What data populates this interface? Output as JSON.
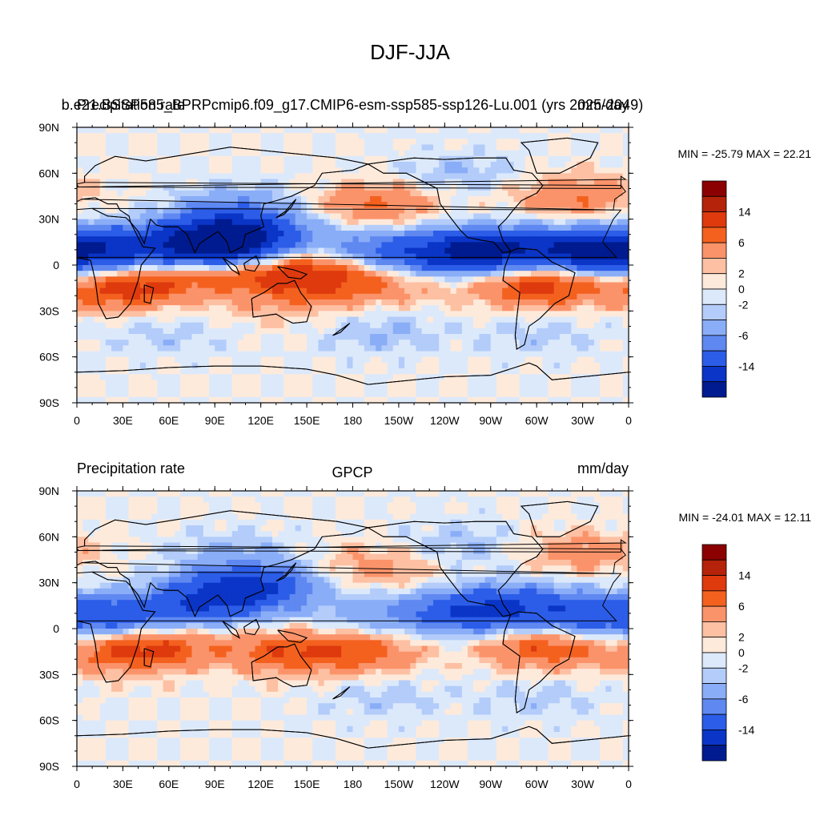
{
  "figure": {
    "title": "DJF-JJA"
  },
  "chart_data": [
    {
      "type": "heatmap",
      "panel": "top",
      "left_title": "Precipitation rate",
      "center_title": "b.e21.BSSP585_BPRPcmip6.f09_g17.CMIP6-esm-ssp585-ssp126-Lu.001 (yrs 2025-2049)",
      "right_title": "mm/day",
      "stats_label": "MIN = -25.79 MAX =  22.21",
      "min": -25.79,
      "max": 22.21,
      "x_ticks": [
        "0",
        "30E",
        "60E",
        "90E",
        "120E",
        "150E",
        "180",
        "150W",
        "120W",
        "90W",
        "60W",
        "30W",
        "0"
      ],
      "y_ticks": [
        "90N",
        "60N",
        "30N",
        "0",
        "30S",
        "60S",
        "90S"
      ],
      "colorbar": {
        "labels": [
          "14",
          "6",
          "2",
          "0",
          "-2",
          "-6",
          "-14"
        ],
        "colors": [
          "#8b0000",
          "#b5230b",
          "#de3a0e",
          "#f4611f",
          "#fb936a",
          "#fdc0a3",
          "#feeadb",
          "#dce9fb",
          "#b3ccfa",
          "#8aadf7",
          "#5f88f1",
          "#2c5de8",
          "#0a35c7",
          "#001b8f"
        ]
      },
      "features": [
        {
          "lon": 95,
          "lat": 22,
          "v": -8
        },
        {
          "lon": 90,
          "lat": 10,
          "v": -10
        },
        {
          "lon": 80,
          "lat": 12,
          "v": -6
        },
        {
          "lon": 120,
          "lat": 20,
          "v": -5
        },
        {
          "lon": 105,
          "lat": 38,
          "v": -3
        },
        {
          "lon": 30,
          "lat": 10,
          "v": -6
        },
        {
          "lon": 0,
          "lat": 10,
          "v": -8
        },
        {
          "lon": 200,
          "lat": 8,
          "v": -6
        },
        {
          "lon": 250,
          "lat": 8,
          "v": -10
        },
        {
          "lon": 280,
          "lat": 10,
          "v": -8
        },
        {
          "lon": 330,
          "lat": 8,
          "v": -10
        },
        {
          "lon": 250,
          "lat": 60,
          "v": -2
        },
        {
          "lon": 200,
          "lat": -45,
          "v": -2
        },
        {
          "lon": 60,
          "lat": -45,
          "v": -1.5
        },
        {
          "lon": 300,
          "lat": -45,
          "v": -1.5
        },
        {
          "lon": 30,
          "lat": -15,
          "v": 7
        },
        {
          "lon": 80,
          "lat": -3,
          "v": 6
        },
        {
          "lon": 140,
          "lat": -5,
          "v": 7
        },
        {
          "lon": 185,
          "lat": -10,
          "v": 5
        },
        {
          "lon": 305,
          "lat": -12,
          "v": 8
        },
        {
          "lon": 325,
          "lat": 45,
          "v": 4
        },
        {
          "lon": 195,
          "lat": 40,
          "v": 4
        },
        {
          "lon": 130,
          "lat": -25,
          "v": 2
        },
        {
          "lon": 250,
          "lat": -15,
          "v": 1
        }
      ]
    },
    {
      "type": "heatmap",
      "panel": "bottom",
      "left_title": "Precipitation rate",
      "center_title": "GPCP",
      "right_title": "mm/day",
      "stats_label": "MIN = -24.01 MAX =  12.11",
      "min": -24.01,
      "max": 12.11,
      "x_ticks": [
        "0",
        "30E",
        "60E",
        "90E",
        "120E",
        "150E",
        "180",
        "150W",
        "120W",
        "90W",
        "60W",
        "30W",
        "0"
      ],
      "y_ticks": [
        "90N",
        "60N",
        "30N",
        "0",
        "30S",
        "60S",
        "90S"
      ],
      "colorbar": {
        "labels": [
          "14",
          "6",
          "2",
          "0",
          "-2",
          "-6",
          "-14"
        ],
        "colors": [
          "#8b0000",
          "#b5230b",
          "#de3a0e",
          "#f4611f",
          "#fb936a",
          "#fdc0a3",
          "#feeadb",
          "#dce9fb",
          "#b3ccfa",
          "#8aadf7",
          "#5f88f1",
          "#2c5de8",
          "#0a35c7",
          "#001b8f"
        ]
      },
      "features": [
        {
          "lon": 100,
          "lat": 25,
          "v": -7
        },
        {
          "lon": 85,
          "lat": 15,
          "v": -6
        },
        {
          "lon": 125,
          "lat": 30,
          "v": -5
        },
        {
          "lon": 10,
          "lat": 8,
          "v": -5
        },
        {
          "lon": 40,
          "lat": 8,
          "v": -4
        },
        {
          "lon": 190,
          "lat": 8,
          "v": -3
        },
        {
          "lon": 250,
          "lat": 10,
          "v": -7
        },
        {
          "lon": 285,
          "lat": 15,
          "v": -7
        },
        {
          "lon": 330,
          "lat": 8,
          "v": -6
        },
        {
          "lon": 100,
          "lat": 50,
          "v": -2
        },
        {
          "lon": 250,
          "lat": 55,
          "v": -2
        },
        {
          "lon": 200,
          "lat": -45,
          "v": -1.5
        },
        {
          "lon": 300,
          "lat": -45,
          "v": -1.5
        },
        {
          "lon": 30,
          "lat": -15,
          "v": 5
        },
        {
          "lon": 60,
          "lat": -10,
          "v": 4
        },
        {
          "lon": 135,
          "lat": -15,
          "v": 5
        },
        {
          "lon": 185,
          "lat": -15,
          "v": 5
        },
        {
          "lon": 305,
          "lat": -12,
          "v": 6
        },
        {
          "lon": 195,
          "lat": 40,
          "v": 3
        },
        {
          "lon": 330,
          "lat": 50,
          "v": 3
        }
      ]
    }
  ]
}
